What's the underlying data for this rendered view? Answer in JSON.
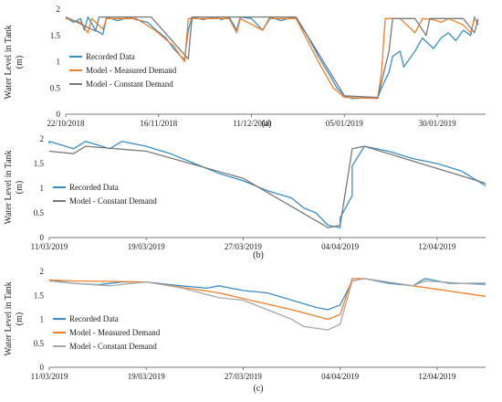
{
  "figure": {
    "ylabel": "Water Level in Tank (m)"
  },
  "chart_data": [
    {
      "type": "line",
      "panel": "(a)",
      "ylabel": "Water Level in Tank (m)",
      "xlabel": "",
      "ylim": [
        0,
        2
      ],
      "yticks": [
        "0",
        "0.5",
        "1",
        "1.5",
        "2"
      ],
      "x_range": [
        "2018-10-22",
        "2019-02-12"
      ],
      "xticks": [
        {
          "date": "2018-10-22",
          "label": "22/10/2018"
        },
        {
          "date": "2018-11-16",
          "label": "16/11/2018"
        },
        {
          "date": "2018-12-11",
          "label": "11/12/2018"
        },
        {
          "date": "2019-01-05",
          "label": "05/01/2019"
        },
        {
          "date": "2019-01-30",
          "label": "30/01/2019"
        }
      ],
      "grid": false,
      "legend": "bottom-left",
      "series": [
        {
          "name": "Recorded Data",
          "color": "#3a8fc8",
          "points": [
            [
              "2018-10-22",
              1.85
            ],
            [
              "2018-10-24",
              1.75
            ],
            [
              "2018-10-26",
              1.82
            ],
            [
              "2018-10-27",
              1.6
            ],
            [
              "2018-10-28",
              1.85
            ],
            [
              "2018-10-30",
              1.6
            ],
            [
              "2018-11-01",
              1.52
            ],
            [
              "2018-11-02",
              1.85
            ],
            [
              "2018-11-05",
              1.78
            ],
            [
              "2018-11-08",
              1.85
            ],
            [
              "2018-11-10",
              1.8
            ],
            [
              "2018-11-13",
              1.75
            ],
            [
              "2018-11-15",
              1.62
            ],
            [
              "2018-11-18",
              1.45
            ],
            [
              "2018-11-20",
              1.25
            ],
            [
              "2018-11-22",
              1.1
            ],
            [
              "2018-11-23",
              1.05
            ],
            [
              "2018-11-24",
              1.6
            ],
            [
              "2018-11-25",
              1.85
            ],
            [
              "2018-11-28",
              1.8
            ],
            [
              "2018-12-01",
              1.85
            ],
            [
              "2018-12-03",
              1.8
            ],
            [
              "2018-12-05",
              1.85
            ],
            [
              "2018-12-07",
              1.6
            ],
            [
              "2018-12-08",
              1.85
            ],
            [
              "2018-12-11",
              1.82
            ],
            [
              "2018-12-14",
              1.6
            ],
            [
              "2018-12-16",
              1.85
            ],
            [
              "2018-12-19",
              1.78
            ],
            [
              "2018-12-22",
              1.85
            ],
            [
              "2018-12-23",
              1.82
            ],
            [
              "2018-12-26",
              1.5
            ],
            [
              "2018-12-29",
              1.1
            ],
            [
              "2019-01-01",
              0.75
            ],
            [
              "2019-01-03",
              0.5
            ],
            [
              "2019-01-05",
              0.35
            ],
            [
              "2019-01-07",
              0.3
            ],
            [
              "2019-01-14",
              0.32
            ],
            [
              "2019-01-15",
              0.5
            ],
            [
              "2019-01-17",
              0.8
            ],
            [
              "2019-01-18",
              1.1
            ],
            [
              "2019-01-20",
              1.2
            ],
            [
              "2019-01-21",
              0.9
            ],
            [
              "2019-01-24",
              1.2
            ],
            [
              "2019-01-26",
              1.45
            ],
            [
              "2019-01-29",
              1.25
            ],
            [
              "2019-01-31",
              1.45
            ],
            [
              "2019-02-02",
              1.55
            ],
            [
              "2019-02-04",
              1.4
            ],
            [
              "2019-02-06",
              1.6
            ],
            [
              "2019-02-08",
              1.5
            ],
            [
              "2019-02-09",
              1.85
            ],
            [
              "2019-02-10",
              1.7
            ]
          ]
        },
        {
          "name": "Model - Measured Demand",
          "color": "#f07f2b",
          "points": [
            [
              "2018-10-22",
              1.82
            ],
            [
              "2018-10-26",
              1.75
            ],
            [
              "2018-10-28",
              1.55
            ],
            [
              "2018-10-29",
              1.82
            ],
            [
              "2018-11-01",
              1.62
            ],
            [
              "2018-11-02",
              1.82
            ],
            [
              "2018-11-10",
              1.82
            ],
            [
              "2018-11-15",
              1.6
            ],
            [
              "2018-11-20",
              1.3
            ],
            [
              "2018-11-23",
              1.0
            ],
            [
              "2018-11-24",
              1.82
            ],
            [
              "2018-12-05",
              1.82
            ],
            [
              "2018-12-07",
              1.55
            ],
            [
              "2018-12-08",
              1.82
            ],
            [
              "2018-12-14",
              1.6
            ],
            [
              "2018-12-16",
              1.82
            ],
            [
              "2018-12-23",
              1.82
            ],
            [
              "2018-12-29",
              1.0
            ],
            [
              "2019-01-02",
              0.5
            ],
            [
              "2019-01-05",
              0.32
            ],
            [
              "2019-01-14",
              0.3
            ],
            [
              "2019-01-15",
              0.8
            ],
            [
              "2019-01-16",
              1.82
            ],
            [
              "2019-01-20",
              1.82
            ],
            [
              "2019-01-24",
              1.55
            ],
            [
              "2019-01-26",
              1.82
            ],
            [
              "2019-01-29",
              1.8
            ],
            [
              "2019-01-31",
              1.75
            ],
            [
              "2019-02-02",
              1.82
            ],
            [
              "2019-02-06",
              1.7
            ],
            [
              "2019-02-08",
              1.55
            ],
            [
              "2019-02-09",
              1.82
            ],
            [
              "2019-02-10",
              1.75
            ]
          ]
        },
        {
          "name": "Model - Constant Demand",
          "color": "#7a7a7a",
          "points": [
            [
              "2018-10-22",
              1.85
            ],
            [
              "2018-10-30",
              1.58
            ],
            [
              "2018-10-31",
              1.85
            ],
            [
              "2018-11-14",
              1.85
            ],
            [
              "2018-11-24",
              1.05
            ],
            [
              "2018-11-25",
              1.85
            ],
            [
              "2018-12-23",
              1.85
            ],
            [
              "2019-01-05",
              0.35
            ],
            [
              "2019-01-14",
              0.32
            ],
            [
              "2019-01-17",
              1.2
            ],
            [
              "2019-01-18",
              1.82
            ],
            [
              "2019-01-24",
              1.82
            ],
            [
              "2019-01-27",
              1.5
            ],
            [
              "2019-01-28",
              1.82
            ],
            [
              "2019-02-06",
              1.82
            ],
            [
              "2019-02-09",
              1.55
            ],
            [
              "2019-02-10",
              1.82
            ]
          ]
        }
      ]
    },
    {
      "type": "line",
      "panel": "(b)",
      "ylabel": "Water Level in Tank (m)",
      "xlabel": "",
      "ylim": [
        0,
        2
      ],
      "yticks": [
        "0",
        "0.5",
        "1",
        "1.5",
        "2"
      ],
      "x_range": [
        "2019-03-11",
        "2019-04-16"
      ],
      "xticks": [
        {
          "date": "2019-03-11",
          "label": "11/03/2019"
        },
        {
          "date": "2019-03-19",
          "label": "19/03/2019"
        },
        {
          "date": "2019-03-27",
          "label": "27/03/2019"
        },
        {
          "date": "2019-04-04",
          "label": "04/04/2019"
        },
        {
          "date": "2019-04-12",
          "label": "12/04/2019"
        }
      ],
      "grid": false,
      "legend": "bottom-left",
      "series": [
        {
          "name": "Recorded Data",
          "color": "#3a8fc8",
          "points": [
            [
              "2019-03-11",
              1.9
            ],
            [
              "2019-03-11",
              1.95
            ],
            [
              "2019-03-13",
              1.8
            ],
            [
              "2019-03-14",
              1.95
            ],
            [
              "2019-03-16",
              1.8
            ],
            [
              "2019-03-17",
              1.95
            ],
            [
              "2019-03-19",
              1.85
            ],
            [
              "2019-03-21",
              1.7
            ],
            [
              "2019-03-23",
              1.5
            ],
            [
              "2019-03-25",
              1.3
            ],
            [
              "2019-03-27",
              1.15
            ],
            [
              "2019-03-29",
              0.95
            ],
            [
              "2019-03-31",
              0.8
            ],
            [
              "2019-04-01",
              0.6
            ],
            [
              "2019-04-02",
              0.5
            ],
            [
              "2019-04-03",
              0.25
            ],
            [
              "2019-04-04",
              0.2
            ],
            [
              "2019-04-04",
              0.4
            ],
            [
              "2019-04-05",
              0.85
            ],
            [
              "2019-04-05",
              1.45
            ],
            [
              "2019-04-06",
              1.85
            ],
            [
              "2019-04-08",
              1.75
            ],
            [
              "2019-04-10",
              1.6
            ],
            [
              "2019-04-12",
              1.5
            ],
            [
              "2019-04-14",
              1.35
            ],
            [
              "2019-04-16",
              1.05
            ]
          ]
        },
        {
          "name": "Model - Constant Demand",
          "color": "#7a7a7a",
          "points": [
            [
              "2019-03-11",
              1.75
            ],
            [
              "2019-03-13",
              1.7
            ],
            [
              "2019-03-14",
              1.85
            ],
            [
              "2019-03-19",
              1.75
            ],
            [
              "2019-03-27",
              1.2
            ],
            [
              "2019-04-03",
              0.2
            ],
            [
              "2019-04-04",
              0.25
            ],
            [
              "2019-04-05",
              1.8
            ],
            [
              "2019-04-06",
              1.85
            ],
            [
              "2019-04-16",
              1.1
            ]
          ]
        }
      ]
    },
    {
      "type": "line",
      "panel": "(c)",
      "ylabel": "Water Level in Tank (m)",
      "xlabel": "",
      "ylim": [
        0,
        2
      ],
      "yticks": [
        "0",
        "0.5",
        "1",
        "1.5",
        "2"
      ],
      "x_range": [
        "2019-03-11",
        "2019-04-16"
      ],
      "xticks": [
        {
          "date": "2019-03-11",
          "label": "11/03/2019"
        },
        {
          "date": "2019-03-19",
          "label": "19/03/2019"
        },
        {
          "date": "2019-03-27",
          "label": "27/03/2019"
        },
        {
          "date": "2019-04-04",
          "label": "04/04/2019"
        },
        {
          "date": "2019-04-12",
          "label": "12/04/2019"
        }
      ],
      "grid": false,
      "legend": "bottom-left",
      "series": [
        {
          "name": "Recorded Data",
          "color": "#3a8fc8",
          "points": [
            [
              "2019-03-11",
              1.82
            ],
            [
              "2019-03-13",
              1.75
            ],
            [
              "2019-03-15",
              1.72
            ],
            [
              "2019-03-17",
              1.78
            ],
            [
              "2019-03-19",
              1.78
            ],
            [
              "2019-03-21",
              1.72
            ],
            [
              "2019-03-24",
              1.65
            ],
            [
              "2019-03-25",
              1.7
            ],
            [
              "2019-03-27",
              1.6
            ],
            [
              "2019-03-29",
              1.55
            ],
            [
              "2019-03-31",
              1.4
            ],
            [
              "2019-04-02",
              1.25
            ],
            [
              "2019-04-03",
              1.2
            ],
            [
              "2019-04-04",
              1.3
            ],
            [
              "2019-04-05",
              1.8
            ],
            [
              "2019-04-06",
              1.85
            ],
            [
              "2019-04-08",
              1.75
            ],
            [
              "2019-04-10",
              1.7
            ],
            [
              "2019-04-11",
              1.85
            ],
            [
              "2019-04-13",
              1.75
            ],
            [
              "2019-04-16",
              1.75
            ]
          ]
        },
        {
          "name": "Model - Measured Demand",
          "color": "#f07f2b",
          "points": [
            [
              "2019-03-11",
              1.82
            ],
            [
              "2019-03-13",
              1.8
            ],
            [
              "2019-03-19",
              1.78
            ],
            [
              "2019-03-25",
              1.55
            ],
            [
              "2019-03-31",
              1.2
            ],
            [
              "2019-04-03",
              1.0
            ],
            [
              "2019-04-04",
              1.1
            ],
            [
              "2019-04-05",
              1.85
            ],
            [
              "2019-04-06",
              1.85
            ],
            [
              "2019-04-10",
              1.7
            ],
            [
              "2019-04-16",
              1.48
            ]
          ]
        },
        {
          "name": "Model - Constant Demand",
          "color": "#a8a8a8",
          "points": [
            [
              "2019-03-11",
              1.8
            ],
            [
              "2019-03-13",
              1.75
            ],
            [
              "2019-03-16",
              1.7
            ],
            [
              "2019-03-19",
              1.78
            ],
            [
              "2019-03-22",
              1.65
            ],
            [
              "2019-03-25",
              1.45
            ],
            [
              "2019-03-27",
              1.4
            ],
            [
              "2019-03-29",
              1.2
            ],
            [
              "2019-03-31",
              1.0
            ],
            [
              "2019-04-01",
              0.85
            ],
            [
              "2019-04-03",
              0.78
            ],
            [
              "2019-04-04",
              0.9
            ],
            [
              "2019-04-05",
              1.8
            ],
            [
              "2019-04-06",
              1.85
            ],
            [
              "2019-04-10",
              1.7
            ],
            [
              "2019-04-11",
              1.8
            ],
            [
              "2019-04-16",
              1.72
            ]
          ]
        }
      ]
    }
  ]
}
